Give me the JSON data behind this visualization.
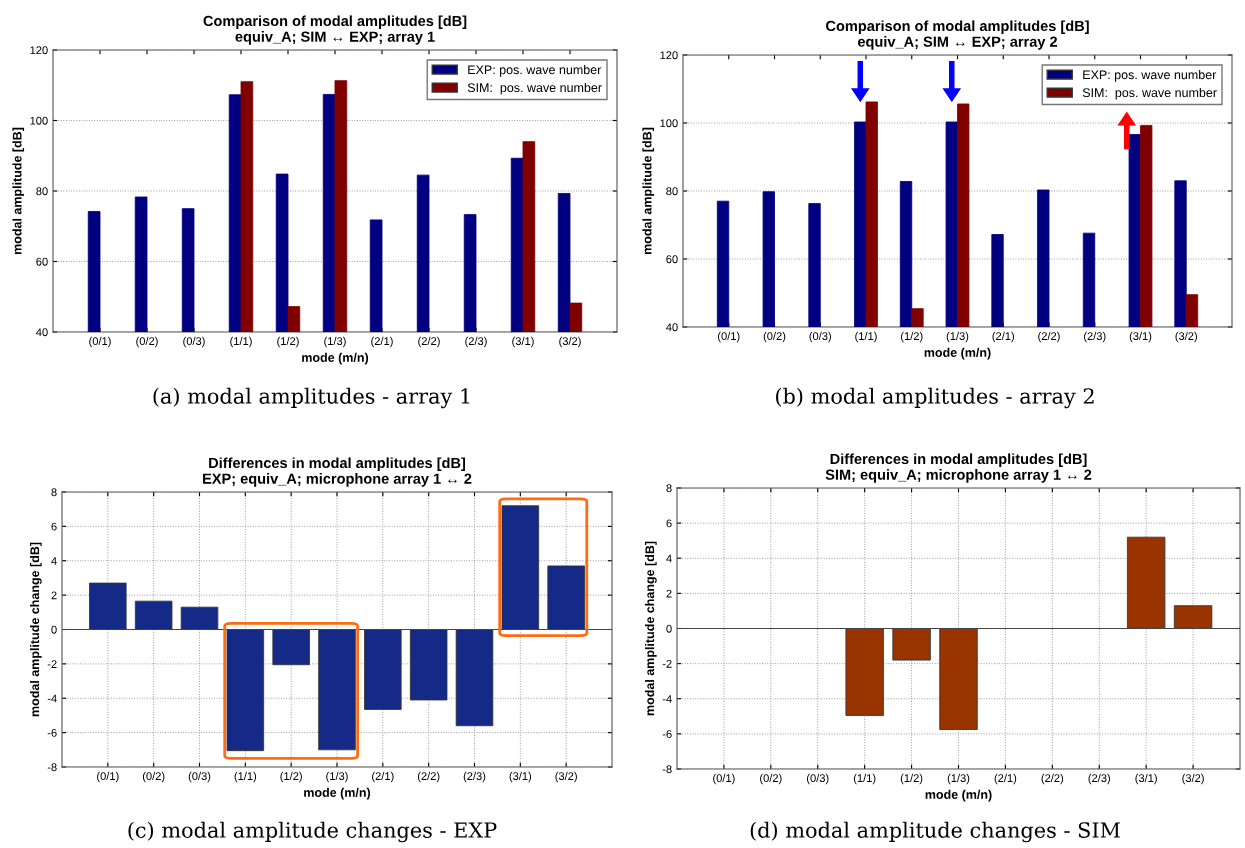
{
  "chart_data": [
    {
      "type": "bar",
      "title": "Comparison of modal amplitudes [dB]\nequiv_A; SIM ↔ EXP; array 1",
      "xlabel": "mode (m/n)",
      "ylabel": "modal amplitude [dB]",
      "categories": [
        "(0/1)",
        "(0/2)",
        "(0/3)",
        "(1/1)",
        "(1/2)",
        "(1/3)",
        "(2/1)",
        "(2/2)",
        "(2/3)",
        "(3/1)",
        "(3/2)"
      ],
      "series": [
        {
          "name": "EXP: pos. wave number",
          "color": "#000080",
          "values": [
            74.2,
            78.3,
            75,
            107.3,
            84.8,
            107.4,
            71.8,
            84.5,
            73.3,
            89.3,
            79.3
          ]
        },
        {
          "name": "SIM:  pos. wave number",
          "color": "#800000",
          "values": [
            null,
            null,
            null,
            111,
            47.2,
            111.3,
            null,
            null,
            null,
            94,
            48.2
          ]
        }
      ],
      "ylim": [
        40,
        120
      ],
      "yticks": [
        40,
        60,
        80,
        100,
        120
      ],
      "grid": "y",
      "legend": "top right",
      "annotations": [
        "(a) modal amplitudes - array 1"
      ]
    },
    {
      "type": "bar",
      "title": "Comparison of modal amplitudes [dB]\nequiv_A; SIM ↔ EXP; array 2",
      "xlabel": "mode (m/n)",
      "ylabel": "modal amplitude [dB]",
      "categories": [
        "(0/1)",
        "(0/2)",
        "(0/3)",
        "(1/1)",
        "(1/2)",
        "(1/3)",
        "(2/1)",
        "(2/2)",
        "(2/3)",
        "(3/1)",
        "(3/2)"
      ],
      "series": [
        {
          "name": "EXP: pos. wave number",
          "color": "#000080",
          "values": [
            77,
            79.8,
            76.3,
            100.3,
            82.8,
            100.3,
            67.2,
            80.3,
            67.6,
            96.6,
            83
          ]
        },
        {
          "name": "SIM:  pos. wave number",
          "color": "#800000",
          "values": [
            null,
            null,
            null,
            106.2,
            45.4,
            105.6,
            null,
            null,
            null,
            99.3,
            49.5
          ]
        }
      ],
      "ylim": [
        40,
        120
      ],
      "yticks": [
        40,
        60,
        80,
        100,
        120
      ],
      "grid": "y",
      "legend": "top right",
      "annotations": [
        "(b) modal amplitudes - array 2"
      ]
    },
    {
      "type": "bar",
      "title": "Differences in modal amplitudes [dB]\nEXP; equiv_A; microphone array 1 ↔ 2",
      "xlabel": "mode (m/n)",
      "ylabel": "modal amplitude change [dB]",
      "categories": [
        "(0/1)",
        "(0/2)",
        "(0/3)",
        "(1/1)",
        "(1/2)",
        "(1/3)",
        "(2/1)",
        "(2/2)",
        "(2/3)",
        "(3/1)",
        "(3/2)"
      ],
      "series": [
        {
          "color": "#152a87",
          "values": [
            2.7,
            1.65,
            1.3,
            -7.05,
            -2.05,
            -7.0,
            -4.65,
            -4.1,
            -5.6,
            7.2,
            3.7
          ]
        }
      ],
      "ylim": [
        -8,
        8
      ],
      "yticks": [
        -8,
        -6,
        -4,
        -2,
        0,
        2,
        4,
        6,
        8
      ],
      "grid": true,
      "annotations": [
        "(c) modal amplitude changes - EXP"
      ]
    },
    {
      "type": "bar",
      "title": "Differences in modal amplitudes [dB]\nSIM; equiv_A; microphone array 1 ↔ 2",
      "xlabel": "mode (m/n)",
      "ylabel": "modal amplitude change [dB]",
      "categories": [
        "(0/1)",
        "(0/2)",
        "(0/3)",
        "(1/1)",
        "(1/2)",
        "(1/3)",
        "(2/1)",
        "(2/2)",
        "(2/3)",
        "(3/1)",
        "(3/2)"
      ],
      "series": [
        {
          "color": "#993300",
          "values": [
            null,
            null,
            null,
            -4.95,
            -1.8,
            -5.75,
            null,
            null,
            null,
            5.2,
            1.3
          ]
        }
      ],
      "ylim": [
        -8,
        8
      ],
      "yticks": [
        -8,
        -6,
        -4,
        -2,
        0,
        2,
        4,
        6,
        8
      ],
      "grid": true,
      "annotations": [
        "(d) modal amplitude changes - SIM"
      ]
    }
  ]
}
